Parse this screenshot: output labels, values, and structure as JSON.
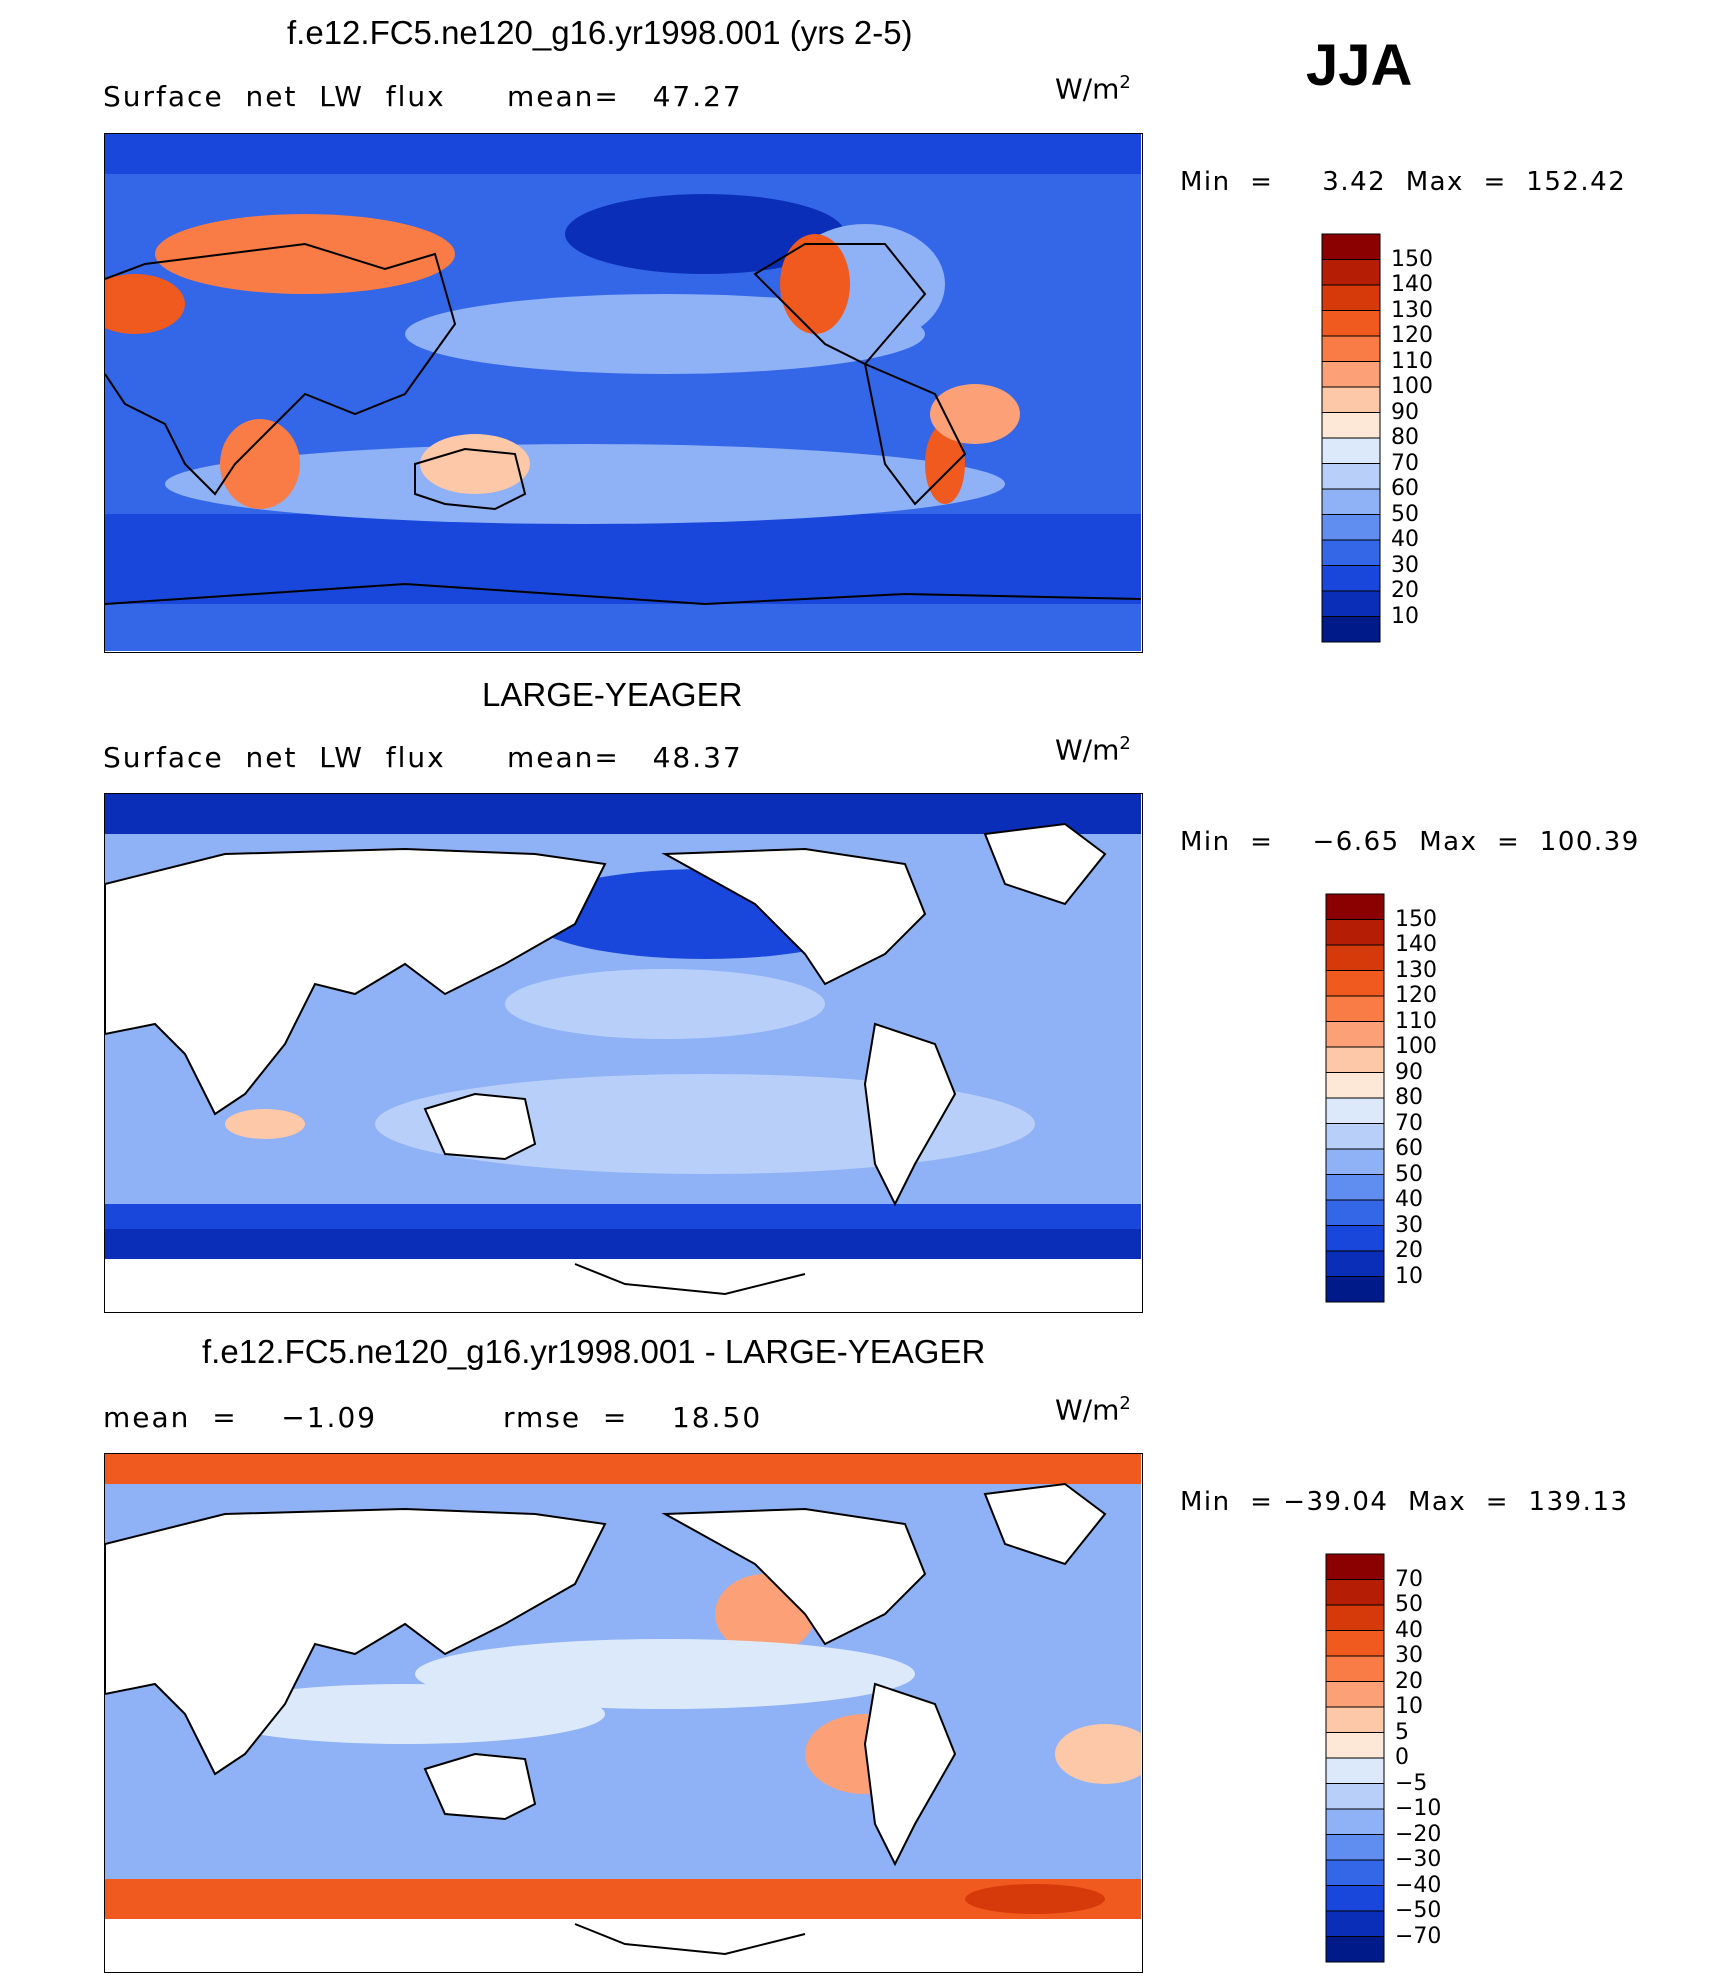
{
  "season": "JJA",
  "units_base": "W/m",
  "units_exp": "2",
  "panels": [
    {
      "title": "f.e12.FC5.ne120_g16.yr1998.001 (yrs 2-5)",
      "left_label": "Surface  net  LW  flux",
      "mid_label": "mean=   47.27",
      "minmax": "Min  =     3.42  Max  =  152.42",
      "ticks": [
        "150",
        "140",
        "130",
        "120",
        "110",
        "100",
        "90",
        "80",
        "70",
        "60",
        "50",
        "40",
        "30",
        "20",
        "10"
      ]
    },
    {
      "title": "LARGE-YEAGER",
      "left_label": "Surface  net  LW  flux",
      "mid_label": "mean=   48.37",
      "minmax": "Min  =    −6.65  Max  =  100.39",
      "ticks": [
        "150",
        "140",
        "130",
        "120",
        "110",
        "100",
        "90",
        "80",
        "70",
        "60",
        "50",
        "40",
        "30",
        "20",
        "10"
      ]
    },
    {
      "title": "f.e12.FC5.ne120_g16.yr1998.001 - LARGE-YEAGER",
      "left_label": "mean  =    −1.09",
      "mid_label": "rmse  =    18.50",
      "minmax": "Min  = −39.04  Max  =  139.13",
      "ticks": [
        "70",
        "50",
        "40",
        "30",
        "20",
        "10",
        "5",
        "0",
        "−5",
        "−10",
        "−20",
        "−30",
        "−40",
        "−50",
        "−70"
      ]
    }
  ],
  "colors": {
    "abs_scale": [
      "#8b0000",
      "#b51e05",
      "#d63a0a",
      "#f05a1e",
      "#f97c46",
      "#fba077",
      "#fcc8a8",
      "#fde8d8",
      "#dbe9fb",
      "#b8d0f9",
      "#8fb1f5",
      "#5f8df0",
      "#3466e8",
      "#1947dc",
      "#0b2eb8",
      "#001a8a"
    ],
    "diff_scale": [
      "#8b0000",
      "#b51e05",
      "#d63a0a",
      "#f05a1e",
      "#f97c46",
      "#fba077",
      "#fcc8a8",
      "#fde8d8",
      "#dbe9fb",
      "#b8d0f9",
      "#8fb1f5",
      "#5f8df0",
      "#3466e8",
      "#1947dc",
      "#0b2eb8",
      "#001a8a"
    ]
  }
}
